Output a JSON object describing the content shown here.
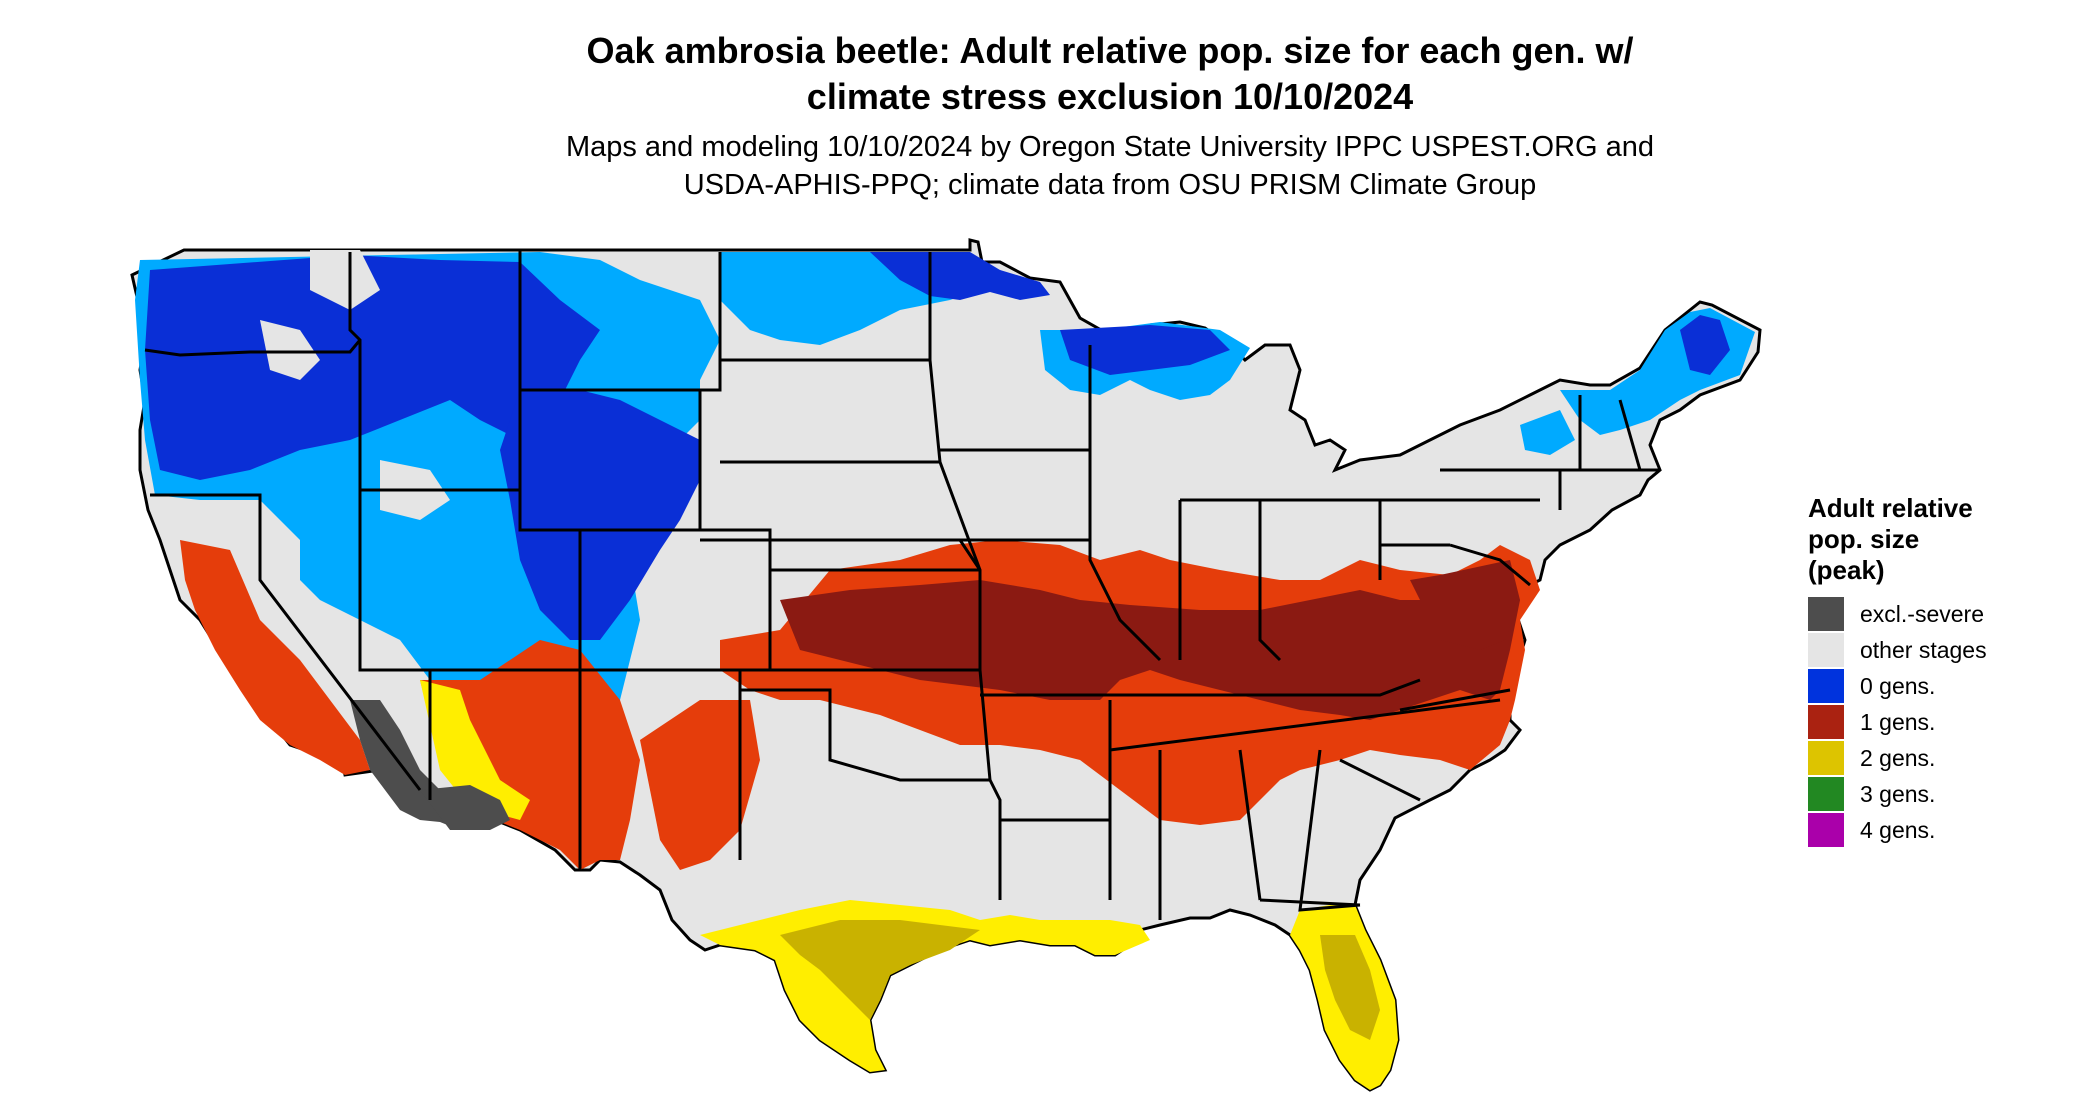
{
  "title": {
    "line1": "Oak ambrosia beetle: Adult relative pop. size for each gen. w/",
    "line2": "climate stress exclusion 10/10/2024"
  },
  "subtitle": {
    "line1": "Maps and modeling 10/10/2024 by Oregon State University IPPC USPEST.ORG and",
    "line2": "USDA-APHIS-PPQ; climate data from OSU PRISM Climate Group"
  },
  "legend": {
    "title_lines": [
      "Adult relative",
      "pop. size",
      "(peak)"
    ],
    "items": [
      {
        "label": "excl.-severe",
        "color": "#4d4d4d"
      },
      {
        "label": "other stages",
        "color": "#e5e5e5"
      },
      {
        "label": "0 gens.",
        "color": "#0033dd"
      },
      {
        "label": "1 gens.",
        "color": "#aa2211"
      },
      {
        "label": "2 gens.",
        "color": "#ddc400"
      },
      {
        "label": "3 gens.",
        "color": "#228822"
      },
      {
        "label": "4 gens.",
        "color": "#aa00aa"
      }
    ]
  },
  "map_colors": {
    "land": "#e5e5e5",
    "border": "#000000",
    "zero_gens_dark": "#0a2fd6",
    "zero_gens_light": "#00aaff",
    "one_gen_dark": "#8b1a12",
    "one_gen_light": "#e53d0b",
    "two_gens_dark": "#c9b200",
    "two_gens_light": "#ffee00",
    "excluded": "#4d4d4d"
  }
}
